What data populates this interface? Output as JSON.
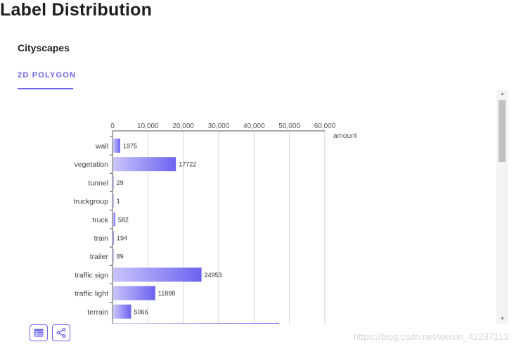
{
  "page": {
    "title": "Label Distribution",
    "dataset": "Cityscapes",
    "tab_label": "2D POLYGON",
    "watermark": "https://blog.csdn.net/weixin_42237113"
  },
  "colors": {
    "accent": "#6b63f0",
    "bar_start": "#c9c5fb",
    "bar_end": "#6b63f0"
  },
  "icons": {
    "table_button": "table-icon",
    "share_button": "share-icon"
  },
  "chart_data": {
    "type": "bar",
    "orientation": "horizontal",
    "xlabel": "amount",
    "x_ticks": [
      "0",
      "10,000",
      "20,000",
      "30,000",
      "40,000",
      "50,000",
      "60,000"
    ],
    "xlim": [
      0,
      60000
    ],
    "grid": true,
    "categories": [
      "wall",
      "vegetation",
      "tunnel",
      "truckgroup",
      "truck",
      "train",
      "trailer",
      "traffic sign",
      "traffic light",
      "terrain"
    ],
    "values": [
      1975,
      17722,
      29,
      1,
      582,
      194,
      89,
      24953,
      11898,
      5066
    ],
    "value_labels": [
      "1975",
      "17722",
      "29",
      "1",
      "582",
      "194",
      "89",
      "24953",
      "11898",
      "5066"
    ]
  }
}
